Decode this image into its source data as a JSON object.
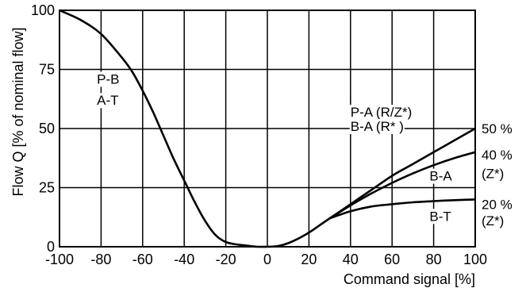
{
  "chart_data": {
    "type": "line",
    "xlabel": "Command signal [%]",
    "ylabel": "Flow Q [% of nominal flow]",
    "xlim": [
      -100,
      100
    ],
    "ylim": [
      0,
      100
    ],
    "x_ticks": [
      -100,
      -80,
      -60,
      -40,
      -20,
      0,
      20,
      40,
      60,
      80,
      100
    ],
    "x_tick_labels": [
      "-100",
      "-80",
      "-60",
      "-40",
      "-20",
      "0",
      "20",
      "40",
      "60",
      "80",
      "100"
    ],
    "y_ticks": [
      0,
      25,
      50,
      75,
      100
    ],
    "y_tick_labels": [
      "0",
      "25",
      "50",
      "75",
      "100"
    ],
    "grid": true,
    "series": [
      {
        "x": [
          -100,
          -90,
          -80,
          -70,
          -65,
          -60,
          -55,
          -50,
          -45,
          -40,
          -35,
          -30,
          -25,
          -20,
          -15,
          -10,
          -5,
          0
        ],
        "y": [
          100,
          96,
          90,
          80,
          74,
          66,
          57,
          47,
          37,
          28,
          19,
          11,
          5,
          2,
          1,
          0.5,
          0,
          0
        ]
      },
      {
        "x": [
          0,
          5,
          10,
          15,
          20,
          25,
          30,
          40,
          50,
          60,
          70,
          80,
          90,
          100
        ],
        "y": [
          0,
          0.3,
          1.5,
          3.5,
          6,
          9,
          12,
          18,
          24,
          30,
          35,
          40,
          45,
          50
        ]
      },
      {
        "x": [
          30,
          40,
          50,
          60,
          70,
          80,
          90,
          100
        ],
        "y": [
          12,
          17.5,
          22.5,
          27,
          31,
          34.5,
          37.5,
          40
        ]
      },
      {
        "x": [
          30,
          40,
          50,
          60,
          70,
          80,
          90,
          100
        ],
        "y": [
          12,
          15,
          17,
          18,
          18.8,
          19.3,
          19.7,
          20
        ]
      }
    ],
    "annotations": [
      {
        "text": "P-B",
        "x": -82,
        "y": 71
      },
      {
        "text": "A-T",
        "x": -82,
        "y": 62
      },
      {
        "text": "P-A (R/Z*)",
        "x": 40,
        "y": 57
      },
      {
        "text": "B-A (R* )",
        "x": 40,
        "y": 51
      },
      {
        "text": "B-A",
        "x": 78,
        "y": 30
      },
      {
        "text": "B-T",
        "x": 78,
        "y": 13
      }
    ],
    "right_labels": [
      {
        "text": "50 %",
        "y": 50
      },
      {
        "text": "40 %",
        "y": 39
      },
      {
        "text": "(Z*)",
        "y": 31
      },
      {
        "text": "20 %",
        "y": 18
      },
      {
        "text": "(Z*)",
        "y": 11
      }
    ]
  }
}
